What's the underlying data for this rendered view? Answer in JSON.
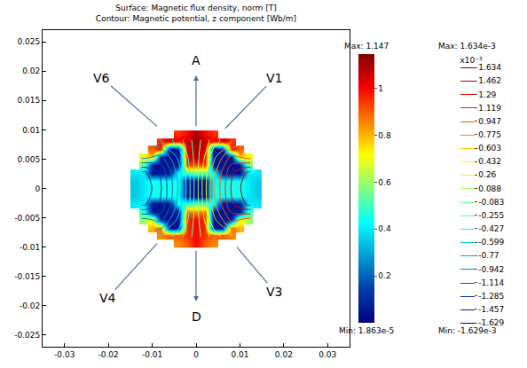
{
  "chart_data": {
    "type": "heatmap",
    "title": [
      "Surface: Magnetic flux density, norm [T]",
      "Contour: Magnetic potential, z component [Wb/m]"
    ],
    "x": [
      -0.016,
      -0.014,
      -0.012,
      -0.01,
      -0.008,
      -0.006,
      -0.004,
      -0.002,
      0,
      0.002,
      0.004,
      0.006,
      0.008,
      0.01,
      0.012,
      0.014,
      0.016
    ],
    "y": [
      -0.0107,
      -0.0093,
      -0.008,
      -0.0067,
      -0.0053,
      -0.004,
      -0.0027,
      -0.0013,
      0,
      0.0013,
      0.0027,
      0.004,
      0.0053,
      0.0067,
      0.008,
      0.0093,
      0.0107
    ],
    "cells": [
      [
        null,
        null,
        null,
        null,
        null,
        null,
        null,
        null,
        null,
        null,
        null,
        null,
        null,
        null,
        null,
        null,
        null
      ],
      [
        null,
        null,
        null,
        null,
        null,
        null,
        0.85,
        0.9,
        1.0,
        0.9,
        0.85,
        null,
        null,
        null,
        null,
        null,
        null
      ],
      [
        null,
        null,
        null,
        null,
        0.85,
        0.9,
        0.9,
        0.95,
        1.0,
        0.95,
        0.9,
        0.9,
        0.85,
        null,
        null,
        null,
        null
      ],
      [
        null,
        null,
        null,
        0.8,
        0.9,
        0.05,
        0.05,
        0.95,
        1.0,
        0.95,
        0.05,
        0.05,
        0.9,
        0.8,
        null,
        null,
        null
      ],
      [
        null,
        null,
        0.6,
        0.7,
        0.05,
        0.05,
        0.05,
        0.95,
        1.0,
        0.95,
        0.05,
        0.05,
        0.05,
        0.7,
        0.6,
        null,
        null
      ],
      [
        null,
        null,
        0.5,
        0.05,
        0.05,
        0.05,
        0.05,
        0.9,
        0.85,
        0.9,
        0.05,
        0.05,
        0.05,
        0.05,
        0.5,
        null,
        null
      ],
      [
        null,
        0.4,
        0.4,
        0.05,
        0.05,
        0.05,
        0.45,
        0.5,
        0.55,
        0.5,
        0.45,
        0.05,
        0.05,
        0.05,
        0.4,
        0.4,
        null
      ],
      [
        null,
        0.35,
        0.4,
        0.45,
        0.45,
        0.45,
        0.45,
        0.05,
        0.05,
        0.05,
        0.45,
        0.45,
        0.45,
        0.45,
        0.4,
        0.35,
        null
      ],
      [
        null,
        0.35,
        0.4,
        0.45,
        0.45,
        0.45,
        0.45,
        0.05,
        0.02,
        0.05,
        0.45,
        0.45,
        0.45,
        0.45,
        0.4,
        0.35,
        null
      ],
      [
        null,
        0.35,
        0.4,
        0.45,
        0.45,
        0.45,
        0.45,
        0.05,
        0.05,
        0.05,
        0.45,
        0.45,
        0.45,
        0.45,
        0.4,
        0.35,
        null
      ],
      [
        null,
        0.4,
        0.4,
        0.05,
        0.05,
        0.05,
        0.45,
        0.5,
        0.55,
        0.5,
        0.45,
        0.05,
        0.05,
        0.05,
        0.4,
        0.4,
        null
      ],
      [
        null,
        null,
        0.55,
        0.05,
        0.05,
        0.05,
        0.05,
        0.95,
        0.9,
        0.95,
        0.05,
        0.05,
        0.05,
        0.05,
        0.55,
        null,
        null
      ],
      [
        null,
        null,
        0.7,
        0.8,
        0.05,
        0.05,
        0.05,
        1.0,
        1.1,
        1.0,
        0.05,
        0.05,
        0.05,
        0.8,
        0.7,
        null,
        null
      ],
      [
        null,
        null,
        null,
        0.9,
        1.0,
        0.05,
        0.05,
        1.05,
        1.1,
        1.05,
        0.05,
        0.05,
        1.0,
        0.9,
        null,
        null,
        null
      ],
      [
        null,
        null,
        null,
        null,
        0.95,
        1.05,
        1.0,
        1.05,
        1.12,
        1.05,
        1.0,
        1.05,
        0.95,
        null,
        null,
        null,
        null
      ],
      [
        null,
        null,
        null,
        null,
        null,
        null,
        0.95,
        1.0,
        1.1,
        1.0,
        0.95,
        null,
        null,
        null,
        null,
        null,
        null
      ],
      [
        null,
        null,
        null,
        null,
        null,
        null,
        null,
        null,
        null,
        null,
        null,
        null,
        null,
        null,
        null,
        null,
        null
      ]
    ],
    "xlim": [
      -0.035,
      0.035
    ],
    "ylim": [
      -0.027,
      0.027
    ],
    "xticks": [
      -0.03,
      -0.02,
      -0.01,
      0,
      0.01,
      0.02,
      0.03
    ],
    "yticks": [
      -0.025,
      -0.02,
      -0.015,
      -0.01,
      -0.005,
      0,
      0.005,
      0.01,
      0.015,
      0.02,
      0.025
    ],
    "grid": false,
    "colorbar": {
      "range": [
        1.863e-05,
        1.147
      ],
      "ticks": [
        0.2,
        0.4,
        0.6,
        0.8,
        1
      ],
      "max_label": "Max: 1.147",
      "min_label": "Min: 1.863e-5"
    },
    "contour": {
      "type": "contour",
      "x": [
        -0.016,
        -0.012,
        -0.008,
        -0.004,
        0,
        0.004,
        0.008,
        0.012,
        0.016
      ],
      "y": [
        -0.0107,
        -0.008,
        -0.0053,
        -0.0027,
        0,
        0.0027,
        0.0053,
        0.008,
        0.0107
      ],
      "cells": [
        [
          null,
          null,
          null,
          null,
          null,
          null,
          null,
          null,
          null
        ],
        [
          null,
          null,
          -0.6,
          -0.35,
          0,
          0.35,
          0.6,
          null,
          null
        ],
        [
          null,
          -0.9,
          -1.0,
          -0.55,
          0,
          0.55,
          1.0,
          0.9,
          null
        ],
        [
          null,
          -1.5,
          -1.25,
          -0.7,
          0,
          0.7,
          1.25,
          1.5,
          null
        ],
        [
          null,
          -1.6,
          -1.3,
          -0.75,
          0,
          0.75,
          1.3,
          1.6,
          null
        ],
        [
          null,
          -1.5,
          -1.25,
          -0.7,
          0,
          0.7,
          1.25,
          1.5,
          null
        ],
        [
          null,
          -0.9,
          -1.0,
          -0.55,
          0,
          0.55,
          1.0,
          0.9,
          null
        ],
        [
          null,
          null,
          -0.6,
          -0.35,
          0,
          0.35,
          0.6,
          null,
          null
        ],
        [
          null,
          null,
          null,
          null,
          null,
          null,
          null,
          null,
          null
        ]
      ],
      "colorbar": {
        "title": "x10⁻³",
        "range": [
          -1.629,
          1.634
        ],
        "ticks": [
          1.634,
          1.462,
          1.29,
          1.119,
          0.947,
          0.775,
          0.603,
          0.432,
          0.26,
          0.088,
          -0.083,
          -0.255,
          -0.427,
          -0.599,
          -0.77,
          -0.942,
          -1.114,
          -1.285,
          -1.457,
          -1.629
        ],
        "max_label": "Max: 1.634e-3",
        "min_label": "Min: -1.629e-3"
      }
    },
    "annotations": [
      {
        "text": "V6",
        "x": -0.0216,
        "y": 0.0189,
        "points_to": [
          -0.0089,
          0.0106
        ]
      },
      {
        "text": "A",
        "x": 0,
        "y": 0.0218,
        "from": [
          0,
          0.0104
        ]
      },
      {
        "text": "V1",
        "x": 0.0179,
        "y": 0.0189,
        "points_to": [
          0.0066,
          0.0102
        ]
      },
      {
        "text": "V4",
        "x": -0.0202,
        "y": -0.0187,
        "points_to": [
          -0.0089,
          -0.0094
        ]
      },
      {
        "text": "D",
        "x": 0,
        "y": -0.0218,
        "from": [
          0,
          -0.0104
        ]
      },
      {
        "text": "V3",
        "x": 0.0179,
        "y": -0.0176,
        "points_to": [
          0.0093,
          -0.01
        ]
      }
    ]
  }
}
